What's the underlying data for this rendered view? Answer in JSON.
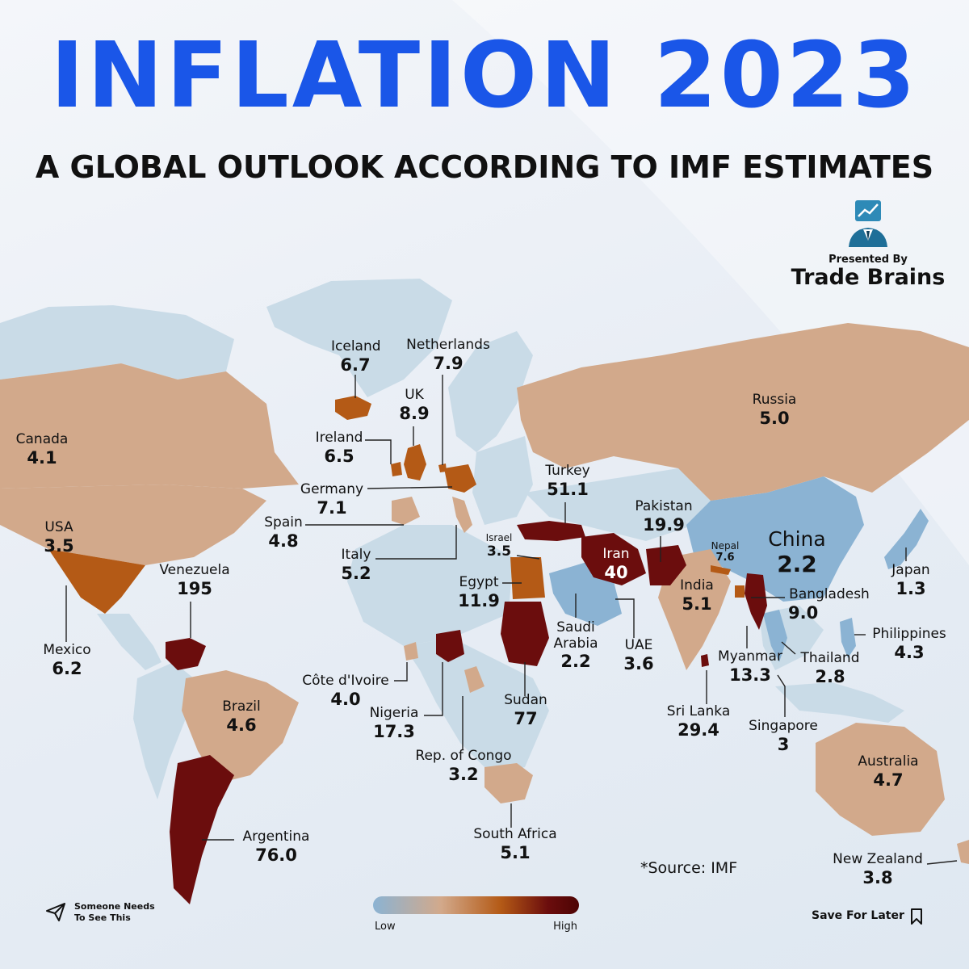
{
  "title": "INFLATION 2023",
  "subtitle": "A GLOBAL OUTLOOK ACCORDING TO IMF ESTIMATES",
  "brand": {
    "presented_by": "Presented By",
    "name": "Trade Brains"
  },
  "source": "*Source: IMF",
  "legend": {
    "low": "Low",
    "high": "High"
  },
  "share": {
    "line1": "Someone Needs",
    "line2": "To See This"
  },
  "save": "Save For Later",
  "colors": {
    "title": "#1a56e8",
    "low": "#8bb3d3",
    "moderate": "#d2a98b",
    "elevated": "#b45a16",
    "high": "#6b0d0d",
    "no_data": "#c9dbe7"
  },
  "countries": [
    {
      "name": "Iceland",
      "value": "6.7"
    },
    {
      "name": "Netherlands",
      "value": "7.9"
    },
    {
      "name": "UK",
      "value": "8.9"
    },
    {
      "name": "Ireland",
      "value": "6.5"
    },
    {
      "name": "Germany",
      "value": "7.1"
    },
    {
      "name": "Spain",
      "value": "4.8"
    },
    {
      "name": "Italy",
      "value": "5.2"
    },
    {
      "name": "Russia",
      "value": "5.0"
    },
    {
      "name": "Turkey",
      "value": "51.1"
    },
    {
      "name": "Israel",
      "value": "3.5"
    },
    {
      "name": "Egypt",
      "value": "11.9"
    },
    {
      "name": "Iran",
      "value": "40"
    },
    {
      "name": "Pakistan",
      "value": "19.9"
    },
    {
      "name": "Nepal",
      "value": "7.6"
    },
    {
      "name": "China",
      "value": "2.2"
    },
    {
      "name": "India",
      "value": "5.1"
    },
    {
      "name": "Bangladesh",
      "value": "9.0"
    },
    {
      "name": "Japan",
      "value": "1.3"
    },
    {
      "name": "Philippines",
      "value": "4.3"
    },
    {
      "name": "Thailand",
      "value": "2.8"
    },
    {
      "name": "Myanmar",
      "value": "13.3"
    },
    {
      "name": "Saudi Arabia",
      "value": "2.2"
    },
    {
      "name": "UAE",
      "value": "3.6"
    },
    {
      "name": "Sudan",
      "value": "77"
    },
    {
      "name": "Sri Lanka",
      "value": "29.4"
    },
    {
      "name": "Singapore",
      "value": "3"
    },
    {
      "name": "Canada",
      "value": "4.1"
    },
    {
      "name": "USA",
      "value": "3.5"
    },
    {
      "name": "Mexico",
      "value": "6.2"
    },
    {
      "name": "Venezuela",
      "value": "195"
    },
    {
      "name": "Brazil",
      "value": "4.6"
    },
    {
      "name": "Argentina",
      "value": "76.0"
    },
    {
      "name": "Côte d'Ivoire",
      "value": "4.0"
    },
    {
      "name": "Nigeria",
      "value": "17.3"
    },
    {
      "name": "Rep. of Congo",
      "value": "3.2"
    },
    {
      "name": "South Africa",
      "value": "5.1"
    },
    {
      "name": "Australia",
      "value": "4.7"
    },
    {
      "name": "New Zealand",
      "value": "3.8"
    }
  ]
}
